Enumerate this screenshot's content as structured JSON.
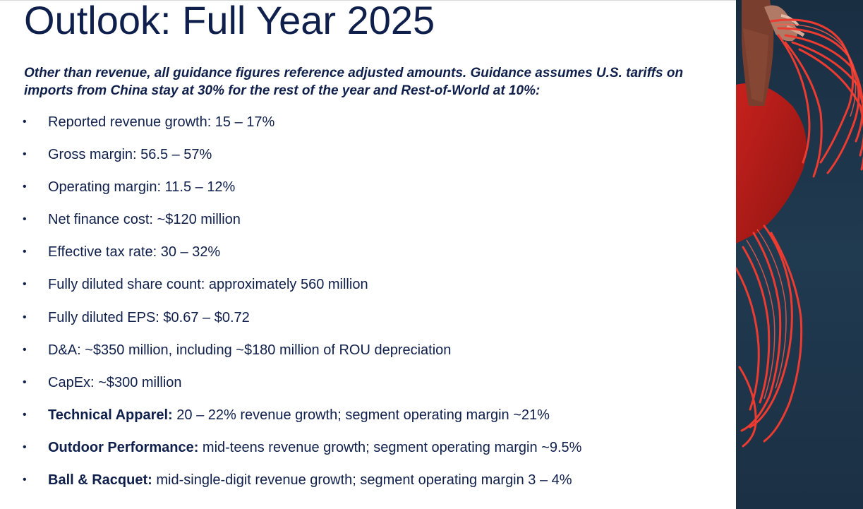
{
  "slide": {
    "title": "Outlook: Full Year 2025",
    "subtitle": "Other than revenue, all guidance figures reference adjusted amounts. Guidance assumes U.S. tariffs on imports from China stay at 30% for the rest of the year and Rest-of-World at 10%:",
    "bullet_glyph": "•",
    "bullets": [
      {
        "bold": "",
        "text": "Reported revenue growth: 15 – 17%"
      },
      {
        "bold": "",
        "text": "Gross margin: 56.5 – 57%"
      },
      {
        "bold": "",
        "text": "Operating margin: 11.5 – 12%"
      },
      {
        "bold": "",
        "text": "Net finance cost: ~$120 million"
      },
      {
        "bold": "",
        "text": "Effective tax rate: 30 – 32%"
      },
      {
        "bold": "",
        "text": "Fully diluted share count: approximately 560 million"
      },
      {
        "bold": "",
        "text": "Fully diluted EPS: $0.67 – $0.72"
      },
      {
        "bold": "",
        "text": "D&A: ~$350 million, including ~$180 million of ROU depreciation"
      },
      {
        "bold": "",
        "text": "CapEx: ~$300 million"
      },
      {
        "bold": "Technical Apparel:",
        "text": "20 – 22% revenue growth; segment operating margin ~21%"
      },
      {
        "bold": "Outdoor Performance:",
        "text": "mid-teens revenue growth; segment operating margin  ~9.5%"
      },
      {
        "bold": "Ball & Racquet:",
        "text": "mid-single-digit revenue growth; segment operating margin 3 – 4%"
      }
    ]
  },
  "colors": {
    "text_navy": "#0f1f4b",
    "photo_background": "#1d3347",
    "rope_red": "#e8322c"
  }
}
